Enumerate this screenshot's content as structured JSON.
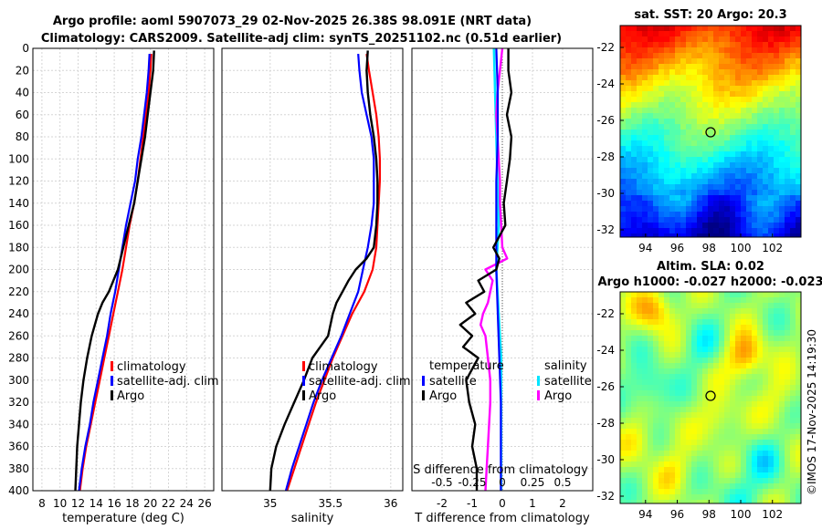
{
  "figure": {
    "title_line1": "Argo profile: aoml 5907073_29 02-Nov-2025 26.38S 98.091E (NRT data)",
    "title_line2": "Climatology: CARS2009. Satellite-adj clim: synTS_20251102.nc (0.51d earlier)",
    "credit": "©IMOS 17-Nov-2025 14:19:30"
  },
  "legend_temp": {
    "items": [
      "climatology",
      "satellite-adj. clim",
      "Argo"
    ]
  },
  "legend_sal": {
    "items": [
      "climatology",
      "satellite-adj. clim",
      "Argo"
    ]
  },
  "legend_diff": {
    "left_title": "temperature",
    "left_items": [
      "satellite",
      "Argo"
    ],
    "right_title": "salinity",
    "right_items": [
      "satellite",
      "Argo"
    ],
    "s_axis_label": "S difference from climatology",
    "s_ticks": [
      "-0.5",
      "-0.25",
      "0",
      "0.25",
      "0.5"
    ]
  },
  "map_sst": {
    "title": "sat. SST: 20 Argo: 20.3",
    "yticks": [
      "-22",
      "-24",
      "-26",
      "-28",
      "-30",
      "-32"
    ],
    "xticks": [
      "94",
      "96",
      "98",
      "100",
      "102"
    ]
  },
  "map_sla": {
    "title_line1": "Altim. SLA: 0.02",
    "title_line2": "Argo h1000: -0.027 h2000: -0.023",
    "yticks": [
      "-22",
      "-24",
      "-26",
      "-28",
      "-30",
      "-32"
    ],
    "xticks": [
      "94",
      "96",
      "98",
      "100",
      "102"
    ]
  },
  "colors": {
    "climatology": "#ff0000",
    "satellite_adj": "#0000ff",
    "argo": "#000000",
    "sal_satellite": "#00e5ff",
    "sal_argo": "#ff00ff"
  },
  "chart_data": [
    {
      "type": "line",
      "name": "temperature",
      "xlabel": "temperature (deg C)",
      "ylabel": "",
      "xlim": [
        7,
        27
      ],
      "ylim": [
        400,
        0
      ],
      "xticks": [
        8,
        10,
        12,
        14,
        16,
        18,
        20,
        22,
        24,
        26
      ],
      "yticks": [
        0,
        20,
        40,
        60,
        80,
        100,
        120,
        140,
        160,
        180,
        200,
        220,
        240,
        260,
        280,
        300,
        320,
        340,
        360,
        380,
        400
      ],
      "grid": true,
      "series": [
        {
          "name": "climatology",
          "depth": [
            5,
            20,
            40,
            60,
            80,
            100,
            120,
            140,
            160,
            180,
            200,
            220,
            240,
            260,
            280,
            300,
            320,
            340,
            360,
            380,
            400
          ],
          "values": [
            20.1,
            20.0,
            19.8,
            19.5,
            19.2,
            18.9,
            18.6,
            18.2,
            17.7,
            17.3,
            16.9,
            16.4,
            15.9,
            15.4,
            14.9,
            14.4,
            13.9,
            13.4,
            12.9,
            12.5,
            12.2
          ]
        },
        {
          "name": "satellite-adj. clim",
          "depth": [
            5,
            20,
            40,
            60,
            80,
            100,
            120,
            140,
            160,
            180,
            200,
            220,
            240,
            260,
            280,
            300,
            320,
            340,
            360,
            380,
            400
          ],
          "values": [
            19.9,
            19.8,
            19.6,
            19.3,
            19.0,
            18.6,
            18.3,
            17.8,
            17.3,
            16.9,
            16.5,
            16.1,
            15.6,
            15.2,
            14.7,
            14.2,
            13.7,
            13.3,
            12.8,
            12.4,
            12.1
          ]
        },
        {
          "name": "Argo",
          "depth": [
            2,
            20,
            40,
            60,
            80,
            100,
            120,
            140,
            160,
            180,
            200,
            220,
            230,
            240,
            260,
            280,
            300,
            320,
            340,
            360,
            380,
            400
          ],
          "values": [
            20.4,
            20.3,
            20.0,
            19.7,
            19.4,
            19.0,
            18.6,
            18.2,
            17.6,
            17.0,
            16.4,
            15.4,
            14.7,
            14.2,
            13.5,
            13.0,
            12.6,
            12.3,
            12.1,
            11.9,
            11.8,
            11.7
          ]
        }
      ]
    },
    {
      "type": "line",
      "name": "salinity",
      "xlabel": "salinity",
      "ylabel": "",
      "xlim": [
        34.6,
        36.1
      ],
      "ylim": [
        400,
        0
      ],
      "xticks": [
        35,
        35.5,
        36
      ],
      "grid": true,
      "series": [
        {
          "name": "climatology",
          "depth": [
            5,
            20,
            40,
            60,
            80,
            100,
            120,
            140,
            160,
            180,
            200,
            220,
            240,
            260,
            280,
            300,
            320,
            340,
            360,
            380,
            400
          ],
          "values": [
            35.8,
            35.82,
            35.85,
            35.88,
            35.9,
            35.91,
            35.91,
            35.9,
            35.89,
            35.88,
            35.85,
            35.78,
            35.68,
            35.6,
            35.52,
            35.45,
            35.38,
            35.32,
            35.26,
            35.2,
            35.14
          ]
        },
        {
          "name": "satellite-adj. clim",
          "depth": [
            5,
            20,
            40,
            60,
            80,
            100,
            120,
            140,
            160,
            180,
            200,
            220,
            240,
            260,
            280,
            300,
            320,
            340,
            360,
            380,
            400
          ],
          "values": [
            35.73,
            35.74,
            35.76,
            35.8,
            35.84,
            35.86,
            35.86,
            35.86,
            35.84,
            35.81,
            35.77,
            35.73,
            35.66,
            35.59,
            35.51,
            35.43,
            35.36,
            35.3,
            35.24,
            35.18,
            35.13
          ]
        },
        {
          "name": "Argo",
          "depth": [
            2,
            20,
            40,
            60,
            80,
            100,
            120,
            140,
            160,
            180,
            190,
            200,
            210,
            220,
            230,
            240,
            250,
            260,
            280,
            300,
            320,
            340,
            360,
            380,
            400
          ],
          "values": [
            35.81,
            35.8,
            35.81,
            35.83,
            35.86,
            35.88,
            35.89,
            35.89,
            35.88,
            35.86,
            35.8,
            35.71,
            35.65,
            35.6,
            35.55,
            35.52,
            35.5,
            35.48,
            35.35,
            35.28,
            35.2,
            35.12,
            35.05,
            35.01,
            35.0
          ]
        }
      ]
    },
    {
      "type": "line",
      "name": "difference from climatology",
      "xlabel": "T difference from climatology",
      "xlim": [
        -3,
        3
      ],
      "ylim": [
        400,
        0
      ],
      "xticks": [
        -2,
        -1,
        0,
        1,
        2
      ],
      "s_xlim": [
        -0.75,
        0.75
      ],
      "grid": true,
      "series": [
        {
          "name": "temperature satellite",
          "depth": [
            0,
            40,
            80,
            120,
            160,
            200,
            240,
            280,
            320,
            360,
            400
          ],
          "values": [
            -0.2,
            -0.15,
            -0.15,
            -0.2,
            -0.2,
            -0.2,
            -0.15,
            -0.1,
            -0.05,
            -0.05,
            -0.05
          ]
        },
        {
          "name": "temperature Argo",
          "depth": [
            0,
            20,
            40,
            60,
            80,
            100,
            120,
            140,
            160,
            180,
            190,
            200,
            210,
            220,
            230,
            240,
            250,
            260,
            270,
            280,
            290,
            300,
            320,
            340,
            360,
            380,
            400
          ],
          "values": [
            0.2,
            0.2,
            0.3,
            0.15,
            0.3,
            0.25,
            0.15,
            0.05,
            0.1,
            -0.3,
            -0.1,
            -0.2,
            -0.8,
            -0.6,
            -1.2,
            -0.9,
            -1.4,
            -1.0,
            -1.3,
            -0.8,
            -1.0,
            -1.2,
            -1.1,
            -0.9,
            -1.0,
            -0.85,
            -0.85
          ]
        },
        {
          "name": "salinity satellite",
          "depth": [
            0,
            40,
            80,
            120,
            160,
            200,
            240,
            280,
            320,
            360,
            400
          ],
          "values": [
            -0.07,
            -0.06,
            -0.05,
            -0.04,
            -0.03,
            -0.05,
            -0.03,
            -0.01,
            -0.01,
            -0.01,
            -0.01
          ]
        },
        {
          "name": "salinity Argo",
          "depth": [
            0,
            20,
            40,
            60,
            80,
            100,
            120,
            140,
            160,
            180,
            190,
            200,
            210,
            220,
            230,
            240,
            250,
            260,
            280,
            300,
            320,
            340,
            360,
            380,
            400
          ],
          "values": [
            0.0,
            -0.02,
            -0.04,
            -0.05,
            -0.04,
            -0.03,
            -0.02,
            -0.02,
            -0.01,
            0.0,
            0.04,
            -0.14,
            -0.08,
            -0.1,
            -0.12,
            -0.16,
            -0.18,
            -0.14,
            -0.12,
            -0.1,
            -0.1,
            -0.11,
            -0.12,
            -0.13,
            -0.14
          ]
        }
      ]
    }
  ]
}
